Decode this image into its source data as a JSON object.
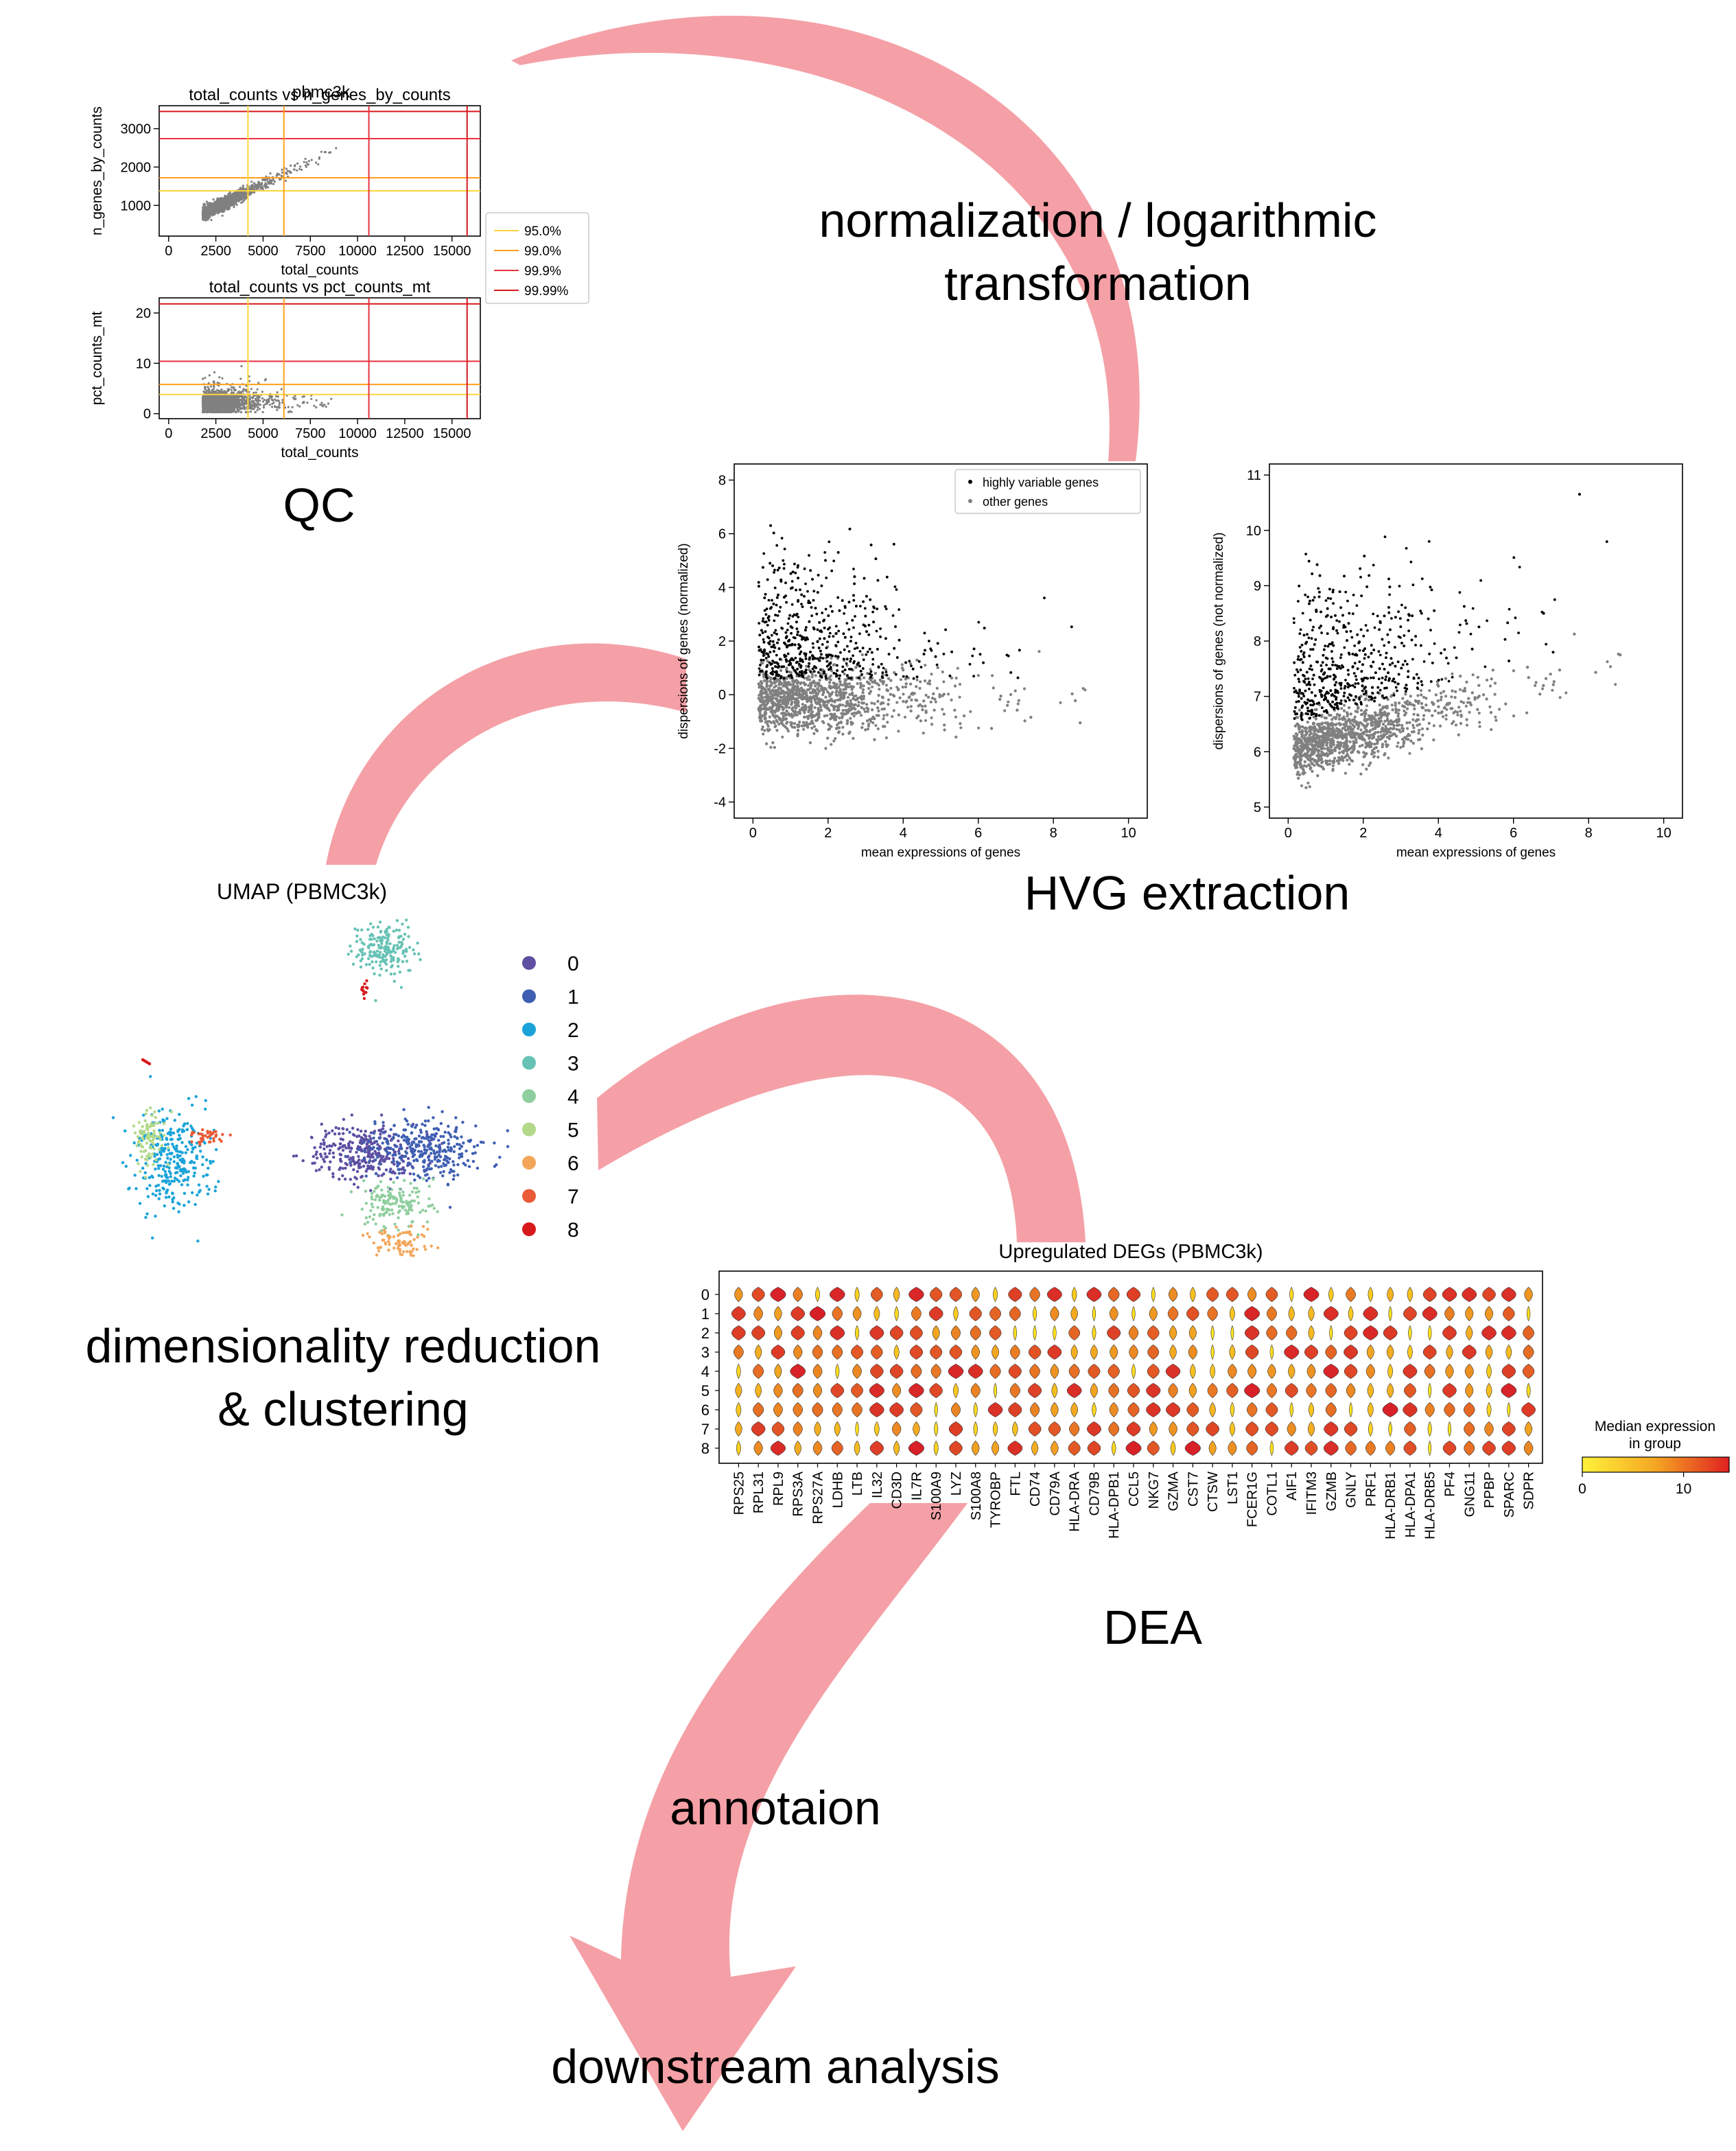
{
  "stages": {
    "qc": "QC",
    "norm_line1": "normalization / logarithmic",
    "norm_line2": "transformation",
    "hvg": "HVG extraction",
    "dimred_line1": "dimensionality reduction",
    "dimred_line2": "& clustering",
    "dea": "DEA",
    "annotation": "annotaion",
    "downstream": "downstream analysis"
  },
  "colors": {
    "arrow": "#f4a0a6",
    "scatter_gray": "#808080",
    "hvg_black": "#000000",
    "threshold_95": "#ffd43b",
    "threshold_99": "#ff9f1c",
    "threshold_999": "#e8333e",
    "threshold_9999": "#d7191c"
  },
  "qc": {
    "suptitle": "pbmc3k",
    "plot1_title": "total_counts vs n_genes_by_counts",
    "plot1_xlabel": "total_counts",
    "plot1_ylabel": "n_genes_by_counts",
    "plot1_xticks": [
      0,
      2500,
      5000,
      7500,
      10000,
      12500,
      15000
    ],
    "plot1_yticks": [
      1000,
      2000,
      3000
    ],
    "plot1_xlim": [
      -500,
      16500
    ],
    "plot1_ylim": [
      200,
      3600
    ],
    "plot1_hlines": [
      1380,
      1720,
      2740,
      3450
    ],
    "plot2_title": "total_counts vs pct_counts_mt",
    "plot2_xlabel": "total_counts",
    "plot2_ylabel": "pct_counts_mt",
    "plot2_xticks": [
      0,
      2500,
      5000,
      7500,
      10000,
      12500,
      15000
    ],
    "plot2_yticks": [
      0,
      10,
      20
    ],
    "plot2_xlim": [
      -500,
      16500
    ],
    "plot2_ylim": [
      -1,
      23
    ],
    "plot2_hlines": [
      3.8,
      5.8,
      10.4,
      21.8
    ],
    "vlines": [
      4200,
      6100,
      10600,
      15800
    ],
    "legend": [
      "95.0%",
      "99.0%",
      "99.9%",
      "99.99%"
    ]
  },
  "hvg": {
    "left": {
      "xlabel": "mean expressions of genes",
      "ylabel": "dispersions of genes (normalized)",
      "xticks": [
        0,
        2,
        4,
        6,
        8,
        10
      ],
      "yticks": [
        -4,
        -2,
        0,
        2,
        4,
        6,
        8
      ],
      "xlim": [
        -0.5,
        10.5
      ],
      "ylim": [
        -4.6,
        8.6
      ]
    },
    "right": {
      "xlabel": "mean expressions of genes",
      "ylabel": "dispersions of genes (not normalized)",
      "xticks": [
        0,
        2,
        4,
        6,
        8,
        10
      ],
      "yticks": [
        5,
        6,
        7,
        8,
        9,
        10,
        11
      ],
      "xlim": [
        -0.5,
        10.5
      ],
      "ylim": [
        4.8,
        11.2
      ]
    },
    "legend": [
      "highly variable genes",
      "other genes"
    ]
  },
  "umap": {
    "title": "UMAP (PBMC3k)",
    "clusters": [
      "0",
      "1",
      "2",
      "3",
      "4",
      "5",
      "6",
      "7",
      "8"
    ],
    "cluster_colors": [
      "#5e4fa2",
      "#3f5fb2",
      "#1aa3d9",
      "#66c2b5",
      "#8fce9e",
      "#b4d98a",
      "#f3a65a",
      "#ea5b37",
      "#d7191c"
    ]
  },
  "dea": {
    "title": "Upregulated DEGs (PBMC3k)",
    "groups": [
      "0",
      "1",
      "2",
      "3",
      "4",
      "5",
      "6",
      "7",
      "8"
    ],
    "genes": [
      "RPS25",
      "RPL31",
      "RPL9",
      "RPS3A",
      "RPS27A",
      "LDHB",
      "LTB",
      "IL32",
      "CD3D",
      "IL7R",
      "S100A9",
      "LYZ",
      "S100A8",
      "TYROBP",
      "FTL",
      "CD74",
      "CD79A",
      "HLA-DRA",
      "CD79B",
      "HLA-DPB1",
      "CCL5",
      "NKG7",
      "GZMA",
      "CST7",
      "CTSW",
      "LST1",
      "FCER1G",
      "COTL1",
      "AIF1",
      "IFITM3",
      "GZMB",
      "GNLY",
      "PRF1",
      "HLA-DRB1",
      "HLA-DPA1",
      "HLA-DRB5",
      "PF4",
      "GNG11",
      "PPBP",
      "SPARC",
      "SDPR"
    ],
    "colorbar_title_line1": "Median expression",
    "colorbar_title_line2": "in group",
    "colorbar_ticks": [
      0,
      10
    ],
    "colorbar_range": [
      0,
      14.5
    ]
  }
}
